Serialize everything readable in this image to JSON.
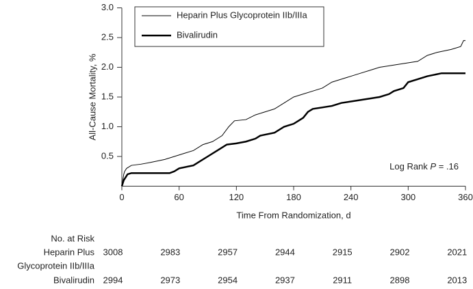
{
  "chart_data": {
    "type": "line",
    "y_label": "All-Cause Mortality, %",
    "x_label": "Time From Randomization, d",
    "xlim": [
      0,
      360
    ],
    "xticks": [
      0,
      60,
      120,
      180,
      240,
      300,
      360
    ],
    "ylim": [
      0,
      3
    ],
    "yticks": [
      0.5,
      {
        "value": 1,
        "label": "1.0"
      },
      1.5,
      {
        "value": 2,
        "label": "2.0"
      },
      2.5,
      {
        "value": 3,
        "label": "3.0"
      }
    ],
    "legend": "upper left",
    "annotation": {
      "text": "Log Rank",
      "italic": "P",
      "rest": "= .16"
    },
    "series": [
      {
        "name": "Heparin Plus Glycoprotein IIb/IIIa",
        "color": "#000000",
        "width": 1,
        "x": [
          0,
          1,
          2,
          3,
          5,
          10,
          20,
          30,
          45,
          55,
          65,
          75,
          85,
          95,
          105,
          112,
          118,
          130,
          140,
          150,
          160,
          170,
          180,
          190,
          200,
          210,
          220,
          230,
          240,
          250,
          260,
          270,
          290,
          310,
          320,
          330,
          345,
          355,
          358,
          360
        ],
        "values": [
          0,
          0.1,
          0.2,
          0.25,
          0.3,
          0.35,
          0.37,
          0.4,
          0.45,
          0.5,
          0.55,
          0.6,
          0.7,
          0.75,
          0.85,
          1.0,
          1.1,
          1.12,
          1.2,
          1.25,
          1.3,
          1.4,
          1.5,
          1.55,
          1.6,
          1.65,
          1.75,
          1.8,
          1.85,
          1.9,
          1.95,
          2.0,
          2.05,
          2.1,
          2.2,
          2.25,
          2.3,
          2.35,
          2.45,
          2.45
        ]
      },
      {
        "name": "Bivalirudin",
        "color": "#000000",
        "width": 2.5,
        "x": [
          0,
          1,
          2,
          4,
          6,
          10,
          50,
          55,
          60,
          75,
          80,
          90,
          100,
          110,
          120,
          130,
          140,
          145,
          160,
          170,
          180,
          185,
          190,
          195,
          200,
          220,
          230,
          250,
          270,
          280,
          285,
          295,
          300,
          310,
          320,
          335,
          360
        ],
        "values": [
          0,
          0.05,
          0.1,
          0.15,
          0.2,
          0.22,
          0.22,
          0.25,
          0.3,
          0.35,
          0.4,
          0.5,
          0.6,
          0.7,
          0.72,
          0.75,
          0.8,
          0.85,
          0.9,
          1.0,
          1.05,
          1.1,
          1.15,
          1.25,
          1.3,
          1.35,
          1.4,
          1.45,
          1.5,
          1.55,
          1.6,
          1.65,
          1.75,
          1.8,
          1.85,
          1.9,
          1.9
        ]
      }
    ],
    "risk_table": {
      "title": "No. at Risk",
      "rows": [
        {
          "label": [
            "Heparin Plus",
            "Glycoprotein IIb/IIIa"
          ],
          "values": [
            3008,
            2983,
            2957,
            2944,
            2915,
            2902,
            2021
          ]
        },
        {
          "label": [
            "Bivalirudin"
          ],
          "values": [
            2994,
            2973,
            2954,
            2937,
            2911,
            2898,
            2013
          ]
        }
      ]
    }
  }
}
